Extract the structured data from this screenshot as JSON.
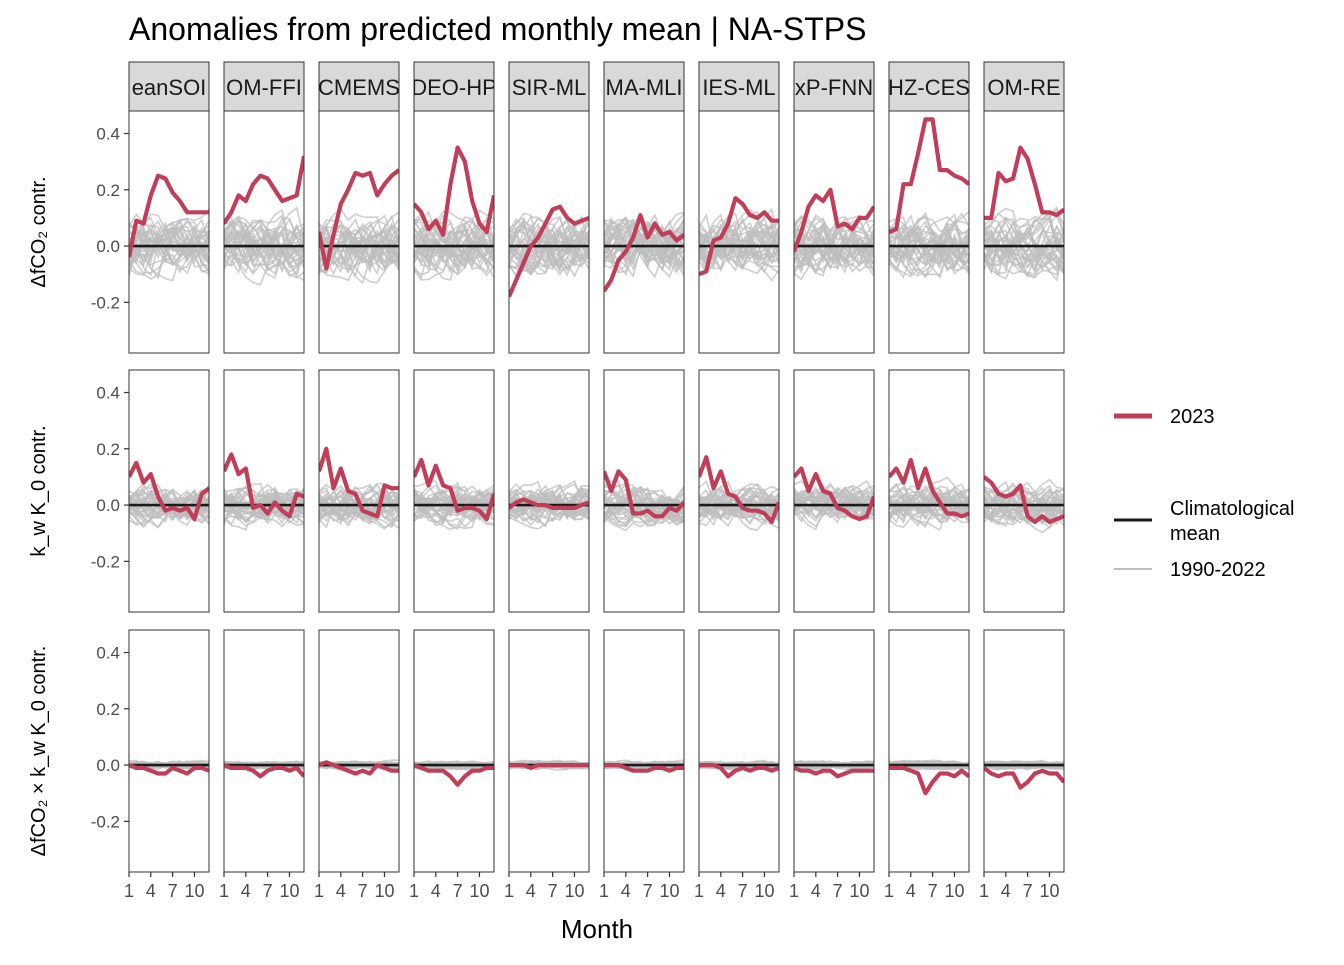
{
  "chart_data": {
    "type": "line",
    "title": "Anomalies from predicted monthly mean | NA-STPS",
    "xlabel": "Month",
    "x_ticks": [
      1,
      4,
      7,
      10
    ],
    "x_tick_labels": [
      "1",
      "4",
      "7",
      "10"
    ],
    "xlim": [
      1,
      12
    ],
    "ylim": [
      -0.38,
      0.48
    ],
    "y_ticks": [
      -0.2,
      0.0,
      0.2,
      0.4
    ],
    "y_tick_labels": [
      "-0.2",
      "0.0",
      "0.2",
      "0.4"
    ],
    "grid": false,
    "legend_position": "right",
    "legend": [
      {
        "key": "2023",
        "label": "2023",
        "color": "#C13E58"
      },
      {
        "key": "clim",
        "label": "Climatological mean",
        "label_lines": [
          "Climatological",
          "mean"
        ],
        "color": "#1A1A1A"
      },
      {
        "key": "hist",
        "label": "1990-2022",
        "color": "#BEBEBE"
      }
    ],
    "colors": {
      "y2023": "#C13E58",
      "clim": "#1A1A1A",
      "hist": "#BEBEBE",
      "strip": "#D9D9D9"
    },
    "facet_columns": [
      "eanSOI",
      "OM-FFI",
      "CMEMS",
      "DEO-HP",
      "SIR-ML",
      "MA-MLI",
      "IES-ML",
      "xP-FNN",
      "HZ-CES",
      "OM-RE"
    ],
    "facet_rows": [
      {
        "key": "dfco2",
        "ylabel": "ΔfCO₂ contr."
      },
      {
        "key": "kw",
        "ylabel": "k_w K_0 contr."
      },
      {
        "key": "cross",
        "ylabel": "ΔfCO₂ × k_w K_0 contr."
      }
    ],
    "series_2023": {
      "dfco2": [
        [
          -0.04,
          0.09,
          0.08,
          0.18,
          0.25,
          0.24,
          0.19,
          0.16,
          0.12,
          0.12,
          0.12,
          0.12
        ],
        [
          0.08,
          0.12,
          0.18,
          0.16,
          0.22,
          0.25,
          0.24,
          0.2,
          0.16,
          0.17,
          0.18,
          0.32
        ],
        [
          0.05,
          -0.08,
          0.04,
          0.15,
          0.2,
          0.26,
          0.25,
          0.26,
          0.18,
          0.22,
          0.25,
          0.27
        ],
        [
          0.15,
          0.12,
          0.06,
          0.09,
          0.04,
          0.22,
          0.35,
          0.3,
          0.16,
          0.08,
          0.05,
          0.18
        ],
        [
          -0.18,
          -0.12,
          -0.06,
          0.0,
          0.03,
          0.08,
          0.13,
          0.14,
          0.1,
          0.08,
          0.09,
          0.1
        ],
        [
          -0.16,
          -0.12,
          -0.05,
          -0.02,
          0.03,
          0.11,
          0.03,
          0.08,
          0.04,
          0.05,
          0.02,
          0.04
        ],
        [
          -0.1,
          -0.09,
          0.02,
          0.03,
          0.08,
          0.17,
          0.15,
          0.11,
          0.1,
          0.12,
          0.09,
          0.09
        ],
        [
          -0.02,
          0.05,
          0.14,
          0.18,
          0.16,
          0.2,
          0.07,
          0.08,
          0.06,
          0.1,
          0.1,
          0.14
        ],
        [
          0.05,
          0.06,
          0.22,
          0.22,
          0.33,
          0.45,
          0.45,
          0.27,
          0.27,
          0.25,
          0.24,
          0.22
        ],
        [
          0.1,
          0.1,
          0.26,
          0.23,
          0.24,
          0.35,
          0.31,
          0.22,
          0.12,
          0.12,
          0.11,
          0.13
        ]
      ],
      "kw": [
        [
          0.1,
          0.15,
          0.08,
          0.11,
          0.03,
          -0.02,
          -0.01,
          -0.02,
          -0.01,
          -0.05,
          0.04,
          0.06
        ],
        [
          0.12,
          0.18,
          0.11,
          0.13,
          -0.01,
          -0.0,
          -0.03,
          0.01,
          -0.02,
          -0.04,
          0.04,
          0.03
        ],
        [
          0.12,
          0.2,
          0.06,
          0.13,
          0.05,
          0.04,
          -0.02,
          -0.03,
          -0.04,
          0.07,
          0.06,
          0.06
        ],
        [
          0.1,
          0.16,
          0.07,
          0.14,
          0.07,
          0.06,
          -0.02,
          -0.01,
          -0.01,
          -0.02,
          -0.05,
          0.04
        ],
        [
          -0.01,
          0.01,
          0.02,
          0.01,
          -0.0,
          -0.0,
          -0.01,
          -0.01,
          -0.01,
          -0.01,
          0.0,
          0.01
        ],
        [
          0.12,
          0.05,
          0.12,
          0.09,
          -0.03,
          -0.03,
          -0.02,
          -0.04,
          -0.04,
          -0.01,
          -0.02,
          0.01
        ],
        [
          0.1,
          0.17,
          0.06,
          0.12,
          0.04,
          0.03,
          -0.01,
          -0.02,
          -0.02,
          -0.03,
          -0.06,
          0.01
        ],
        [
          0.1,
          0.13,
          0.05,
          0.11,
          0.05,
          0.04,
          -0.01,
          -0.02,
          -0.04,
          -0.05,
          -0.04,
          0.03
        ],
        [
          0.1,
          0.13,
          0.08,
          0.16,
          0.06,
          0.13,
          0.05,
          0.01,
          -0.03,
          -0.03,
          -0.04,
          -0.03
        ],
        [
          0.1,
          0.08,
          0.04,
          0.03,
          0.04,
          0.07,
          -0.04,
          -0.06,
          -0.04,
          -0.06,
          -0.05,
          -0.04
        ]
      ],
      "cross": [
        [
          0.0,
          -0.01,
          -0.01,
          -0.02,
          -0.03,
          -0.03,
          -0.01,
          -0.02,
          -0.03,
          -0.01,
          -0.01,
          -0.02
        ],
        [
          -0.0,
          -0.01,
          -0.01,
          -0.01,
          -0.02,
          -0.04,
          -0.02,
          -0.01,
          -0.01,
          -0.02,
          -0.01,
          -0.04
        ],
        [
          0.0,
          0.01,
          0.0,
          -0.01,
          -0.02,
          -0.03,
          -0.02,
          -0.03,
          0.0,
          -0.01,
          -0.02,
          -0.02
        ],
        [
          -0.0,
          -0.01,
          -0.02,
          -0.02,
          -0.02,
          -0.04,
          -0.07,
          -0.04,
          -0.02,
          -0.02,
          -0.01,
          -0.01
        ],
        [
          0.0,
          -0.0,
          -0.0,
          -0.01,
          0.0,
          -0.0,
          -0.0,
          -0.0,
          -0.0,
          -0.0,
          -0.0,
          0.0
        ],
        [
          -0.0,
          0.0,
          0.0,
          -0.01,
          -0.02,
          -0.02,
          -0.02,
          -0.01,
          -0.01,
          -0.02,
          -0.01,
          -0.01
        ],
        [
          0.0,
          0.0,
          0.0,
          -0.01,
          -0.04,
          -0.02,
          -0.01,
          -0.02,
          -0.01,
          -0.01,
          -0.02,
          -0.01
        ],
        [
          -0.01,
          -0.02,
          -0.02,
          -0.03,
          -0.02,
          -0.02,
          -0.04,
          -0.03,
          -0.02,
          -0.02,
          -0.02,
          -0.02
        ],
        [
          -0.01,
          -0.01,
          -0.01,
          -0.02,
          -0.03,
          -0.1,
          -0.06,
          -0.03,
          -0.03,
          -0.04,
          -0.02,
          -0.04
        ],
        [
          -0.01,
          -0.03,
          -0.04,
          -0.03,
          -0.03,
          -0.08,
          -0.06,
          -0.03,
          -0.02,
          -0.03,
          -0.03,
          -0.06
        ]
      ]
    },
    "history_spread": {
      "dfco2": 0.09,
      "kw": 0.06,
      "cross": 0.012
    },
    "history_years": 33
  }
}
